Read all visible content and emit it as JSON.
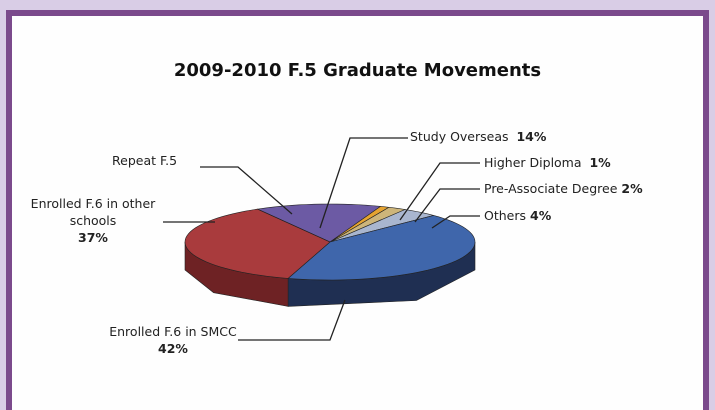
{
  "chart_data": {
    "type": "pie",
    "title": "2009-2010 F.5 Graduate Movements",
    "categories": [
      "Study Overseas",
      "Higher Diploma",
      "Pre-Associate Degree",
      "Others",
      "Enrolled F.6 in SMCC",
      "Enrolled F.6 in other schools",
      "Repeat F.5"
    ],
    "values": [
      14,
      1,
      2,
      4,
      42,
      37,
      0
    ],
    "value_labels": [
      "14%",
      "1%",
      "2%",
      "4%",
      "42%",
      "37%",
      null
    ],
    "colors": [
      "#6c5aa4",
      "#e6a431",
      "#cdb57a",
      "#a9b6cf",
      "#3f66ab",
      "#a93b3d",
      "#7a7a7a"
    ],
    "side_colors": [
      "#463a72",
      "#a8741c",
      "#8f7d4e",
      "#6f7a92",
      "#1f2f52",
      "#6e2224",
      "#4a4a4a"
    ]
  }
}
